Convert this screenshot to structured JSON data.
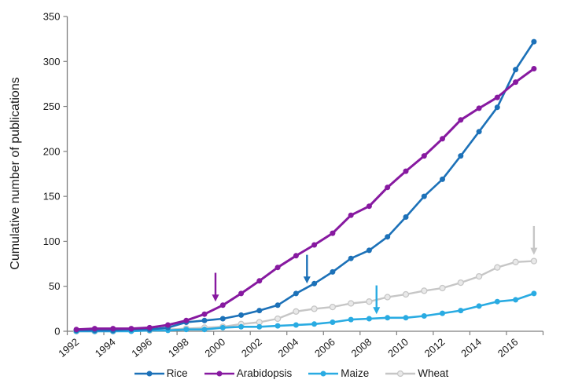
{
  "chart_data": {
    "type": "line",
    "title": "",
    "ylabel": "Cumulative number of publications",
    "xlabel": "",
    "x": [
      1992,
      1993,
      1994,
      1995,
      1996,
      1997,
      1998,
      1999,
      2000,
      2001,
      2002,
      2003,
      2004,
      2005,
      2006,
      2007,
      2008,
      2009,
      2010,
      2011,
      2012,
      2013,
      2014,
      2015,
      2016,
      2017
    ],
    "x_tick_labels": [
      "1992",
      "1994",
      "1996",
      "1998",
      "2000",
      "2002",
      "2004",
      "2006",
      "2008",
      "2010",
      "2012",
      "2014",
      "2016"
    ],
    "y_ticks": [
      0,
      50,
      100,
      150,
      200,
      250,
      300,
      350
    ],
    "ylim": [
      0,
      350
    ],
    "grid": false,
    "legend_position": "bottom",
    "series": [
      {
        "name": "Rice",
        "color": "#1C71B8",
        "values": [
          1,
          1,
          1,
          2,
          2,
          4,
          10,
          12,
          14,
          18,
          23,
          29,
          42,
          53,
          66,
          81,
          90,
          105,
          127,
          150,
          169,
          195,
          222,
          249,
          291,
          322
        ]
      },
      {
        "name": "Arabidopsis",
        "color": "#8719A0",
        "values": [
          2,
          3,
          3,
          3,
          4,
          7,
          12,
          19,
          29,
          42,
          56,
          71,
          84,
          96,
          109,
          129,
          139,
          160,
          178,
          195,
          214,
          235,
          248,
          260,
          277,
          292
        ]
      },
      {
        "name": "Maize",
        "color": "#29ABE2",
        "values": [
          0,
          0,
          0,
          0,
          1,
          1,
          2,
          2,
          4,
          5,
          5,
          6,
          7,
          8,
          10,
          13,
          14,
          15,
          15,
          17,
          20,
          23,
          28,
          33,
          35,
          42
        ]
      },
      {
        "name": "Wheat",
        "color": "#C6C6C6",
        "marker_fill": "#E9E9E9",
        "values": [
          0,
          0,
          0,
          1,
          1,
          2,
          3,
          4,
          5,
          8,
          10,
          14,
          22,
          25,
          27,
          31,
          33,
          38,
          41,
          45,
          48,
          54,
          61,
          71,
          77,
          78
        ]
      }
    ],
    "annotations": [
      {
        "type": "arrow",
        "name": "arabidopsis-genome-arrow",
        "color": "#8719A0",
        "x": 1999.6,
        "from_value": 65,
        "to_value": 33
      },
      {
        "type": "arrow",
        "name": "rice-genome-arrow",
        "color": "#1C71B8",
        "x": 2004.6,
        "from_value": 85,
        "to_value": 53
      },
      {
        "type": "arrow",
        "name": "maize-genome-arrow",
        "color": "#29ABE2",
        "x": 2008.4,
        "from_value": 51,
        "to_value": 19
      },
      {
        "type": "arrow",
        "name": "wheat-genome-arrow",
        "color": "#C6C6C6",
        "x": 2017.0,
        "from_value": 117,
        "to_value": 85
      }
    ]
  }
}
